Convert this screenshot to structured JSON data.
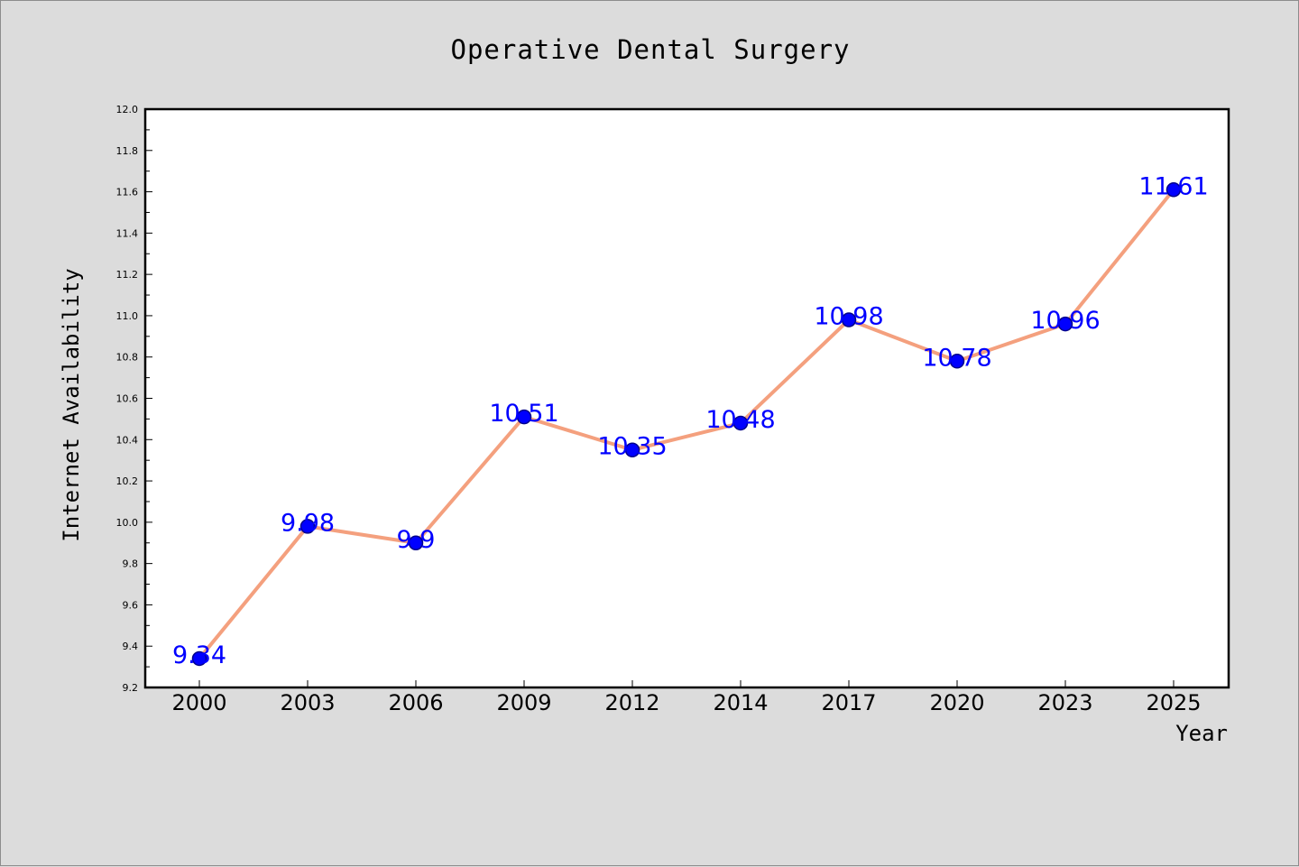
{
  "chart_data": {
    "type": "line",
    "title": "Operative Dental Surgery",
    "xlabel": "Year",
    "ylabel": "Internet Availability",
    "categories": [
      "2000",
      "2003",
      "2006",
      "2009",
      "2012",
      "2014",
      "2017",
      "2020",
      "2023",
      "2025"
    ],
    "series": [
      {
        "values": [
          9.34,
          9.98,
          9.9,
          10.51,
          10.35,
          10.48,
          10.98,
          10.78,
          10.96,
          11.61
        ],
        "labels": [
          "9.34",
          "9.98",
          "9.9",
          "10.51",
          "10.35",
          "10.48",
          "10.98",
          "10.78",
          "10.96",
          "11.61"
        ]
      }
    ],
    "ylim": [
      9.2,
      12.0
    ],
    "yticks": [
      "9.2",
      "9.4",
      "9.6",
      "9.8",
      "10.0",
      "10.2",
      "10.4",
      "10.6",
      "10.8",
      "11.0",
      "11.2",
      "11.4",
      "11.6",
      "11.8",
      "12.0"
    ],
    "grid": false,
    "legend": false,
    "colors": {
      "line": "#f4a07e",
      "marker_fill": "#0000ff",
      "marker_edge": "#00008b",
      "data_label": "#0000ff",
      "background": "#dcdcdc",
      "plot_background": "#ffffff"
    }
  }
}
